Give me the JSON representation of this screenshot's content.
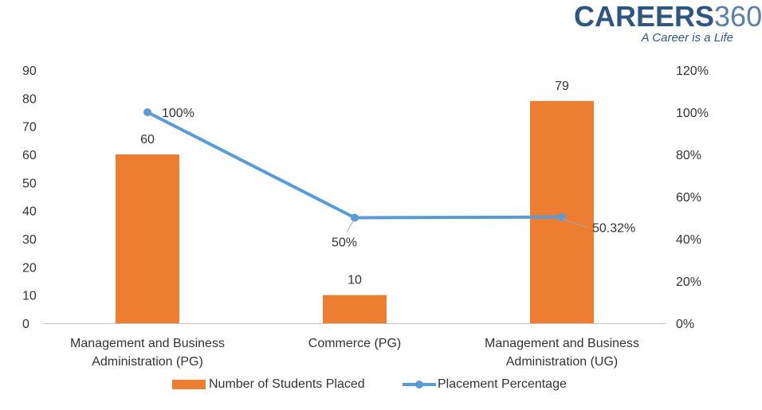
{
  "brand": {
    "name_text": "CAREERS",
    "name_number": "360",
    "tagline": "A Career is a Life"
  },
  "colors": {
    "bar": "#ED7D31",
    "line": "#5B9BD5",
    "text": "#333333",
    "axis": "#BFBFBF",
    "leader": "#A6A6A6"
  },
  "chart_data": {
    "type": "bar",
    "categories": [
      [
        "Management and Business",
        "Administration (PG)"
      ],
      [
        "Commerce (PG)"
      ],
      [
        "Management and Business",
        "Administration (UG)"
      ]
    ],
    "series": [
      {
        "name": "Number of Students Placed",
        "type": "bar",
        "axis": "left",
        "values": [
          60,
          10,
          79
        ],
        "labels": [
          "60",
          "10",
          "79"
        ]
      },
      {
        "name": "Placement Percentage",
        "type": "line",
        "axis": "right",
        "values": [
          100,
          50,
          50.32
        ],
        "labels": [
          "100%",
          "50%",
          "50.32%"
        ]
      }
    ],
    "y_left": {
      "min": 0,
      "max": 90,
      "ticks": [
        "0",
        "10",
        "20",
        "30",
        "40",
        "50",
        "60",
        "70",
        "80",
        "90"
      ]
    },
    "y_right": {
      "min": 0,
      "max": 120,
      "ticks": [
        "0%",
        "20%",
        "40%",
        "60%",
        "80%",
        "100%",
        "120%"
      ]
    },
    "grid": false,
    "legend_position": "bottom"
  }
}
